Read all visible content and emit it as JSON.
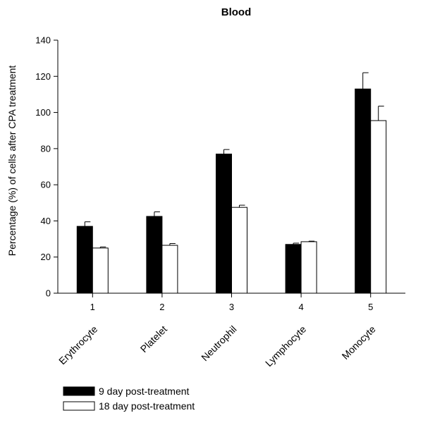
{
  "chart_data": {
    "type": "bar",
    "title": "Blood",
    "xlabel": "",
    "ylabel": "Percentage (%) of cells after CPA treatment",
    "ylim": [
      0,
      140
    ],
    "yticks": [
      "0",
      "20",
      "40",
      "60",
      "80",
      "100",
      "120",
      "140"
    ],
    "categories": [
      "1",
      "2",
      "3",
      "4",
      "5"
    ],
    "category_names": [
      "Erythrocyte",
      "Platelet",
      "Neutrophil",
      "Lymphocyte",
      "Monocyte"
    ],
    "series": [
      {
        "name": "9 day post-treatment",
        "color": "#000000",
        "values": [
          37,
          42.5,
          77,
          27,
          113
        ],
        "errors": [
          2.5,
          2.5,
          2.5,
          0.7,
          9
        ]
      },
      {
        "name": "18 day post-treatment",
        "color": "#ffffff",
        "values": [
          25,
          26.5,
          47.5,
          28.5,
          95.5
        ],
        "errors": [
          0.6,
          1,
          1.2,
          0.3,
          8
        ]
      }
    ],
    "grid": false,
    "legend_position": "bottom-left"
  }
}
